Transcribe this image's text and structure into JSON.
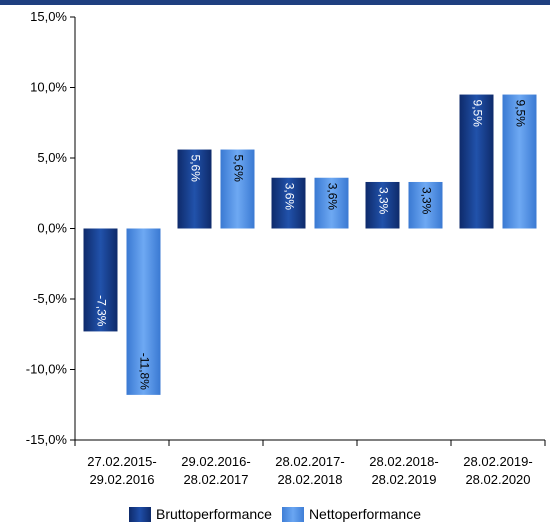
{
  "chart_data": {
    "type": "bar",
    "categories": [
      [
        "27.02.2015-",
        "29.02.2016"
      ],
      [
        "29.02.2016-",
        "28.02.2017"
      ],
      [
        "28.02.2017-",
        "28.02.2018"
      ],
      [
        "28.02.2018-",
        "28.02.2019"
      ],
      [
        "28.02.2019-",
        "28.02.2020"
      ]
    ],
    "series": [
      {
        "name": "Bruttoperformance",
        "values": [
          -7.3,
          5.6,
          3.6,
          3.3,
          9.5
        ],
        "labels": [
          "-7,3%",
          "5,6%",
          "3,6%",
          "3,3%",
          "9,5%"
        ],
        "color": "#173c8c"
      },
      {
        "name": "Nettoperformance",
        "values": [
          -11.8,
          5.6,
          3.6,
          3.3,
          9.5
        ],
        "labels": [
          "-11,8%",
          "5,6%",
          "3,6%",
          "3,3%",
          "9,5%"
        ],
        "color": "#4f8fe6"
      }
    ],
    "yticks": [
      15,
      10,
      5,
      0,
      -5,
      -10,
      -15
    ],
    "ytick_labels": [
      "15,0%",
      "10,0%",
      "5,0%",
      "0,0%",
      "-5,0%",
      "-10,0%",
      "-15,0%"
    ],
    "ylim": [
      -15,
      15
    ],
    "grid": false,
    "legend_position": "bottom"
  }
}
